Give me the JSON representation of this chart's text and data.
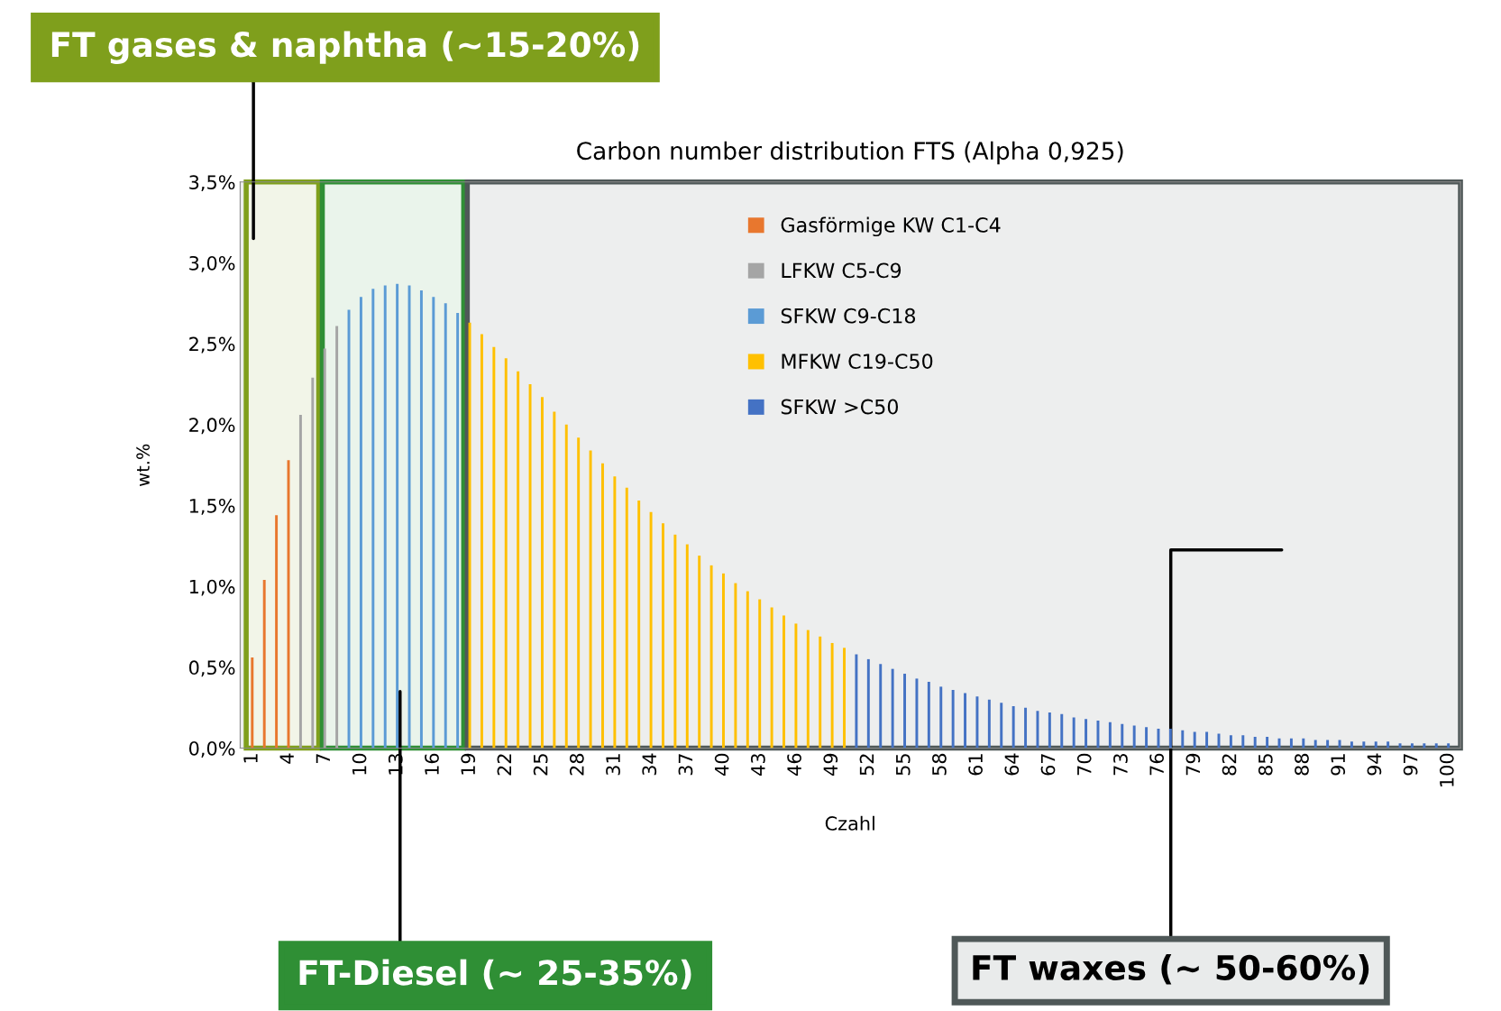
{
  "chart_data": {
    "type": "bar",
    "title": "Carbon number distribution FTS (Alpha 0,925)",
    "xlabel": "Czahl",
    "ylabel": "wt.%",
    "xlim": [
      0,
      101
    ],
    "xticks": [
      1,
      4,
      7,
      10,
      13,
      16,
      19,
      22,
      25,
      28,
      31,
      34,
      37,
      40,
      43,
      46,
      49,
      52,
      55,
      58,
      61,
      64,
      67,
      70,
      73,
      76,
      79,
      82,
      85,
      88,
      91,
      94,
      97,
      100
    ],
    "ylim": [
      0,
      3.5
    ],
    "yticks": [
      {
        "value": 0,
        "label": "0,0%"
      },
      {
        "value": 0.5,
        "label": "0,5%"
      },
      {
        "value": 1,
        "label": "1,0%"
      },
      {
        "value": 1.5,
        "label": "1,5%"
      },
      {
        "value": 2,
        "label": "2,0%"
      },
      {
        "value": 2.5,
        "label": "2,5%"
      },
      {
        "value": 3,
        "label": "3,0%"
      },
      {
        "value": 3.5,
        "label": "3,5%"
      }
    ],
    "grid": false,
    "legend": "top",
    "series": [
      {
        "name": "Gasförmige KW C1-C4",
        "color": "#e8772e",
        "x": [
          1,
          2,
          3,
          4
        ],
        "values": [
          0.56,
          1.04,
          1.44,
          1.78
        ]
      },
      {
        "name": "LFKW C5-C9",
        "color": "#a5a5a5",
        "x": [
          5,
          6,
          7,
          8
        ],
        "values": [
          2.06,
          2.29,
          2.47,
          2.61
        ]
      },
      {
        "name": "SFKW C9-C18",
        "color": "#5b9bd5",
        "x": [
          9,
          10,
          11,
          12,
          13,
          14,
          15,
          16,
          17,
          18
        ],
        "values": [
          2.71,
          2.79,
          2.84,
          2.86,
          2.87,
          2.86,
          2.83,
          2.79,
          2.75,
          2.69
        ]
      },
      {
        "name": "MFKW C19-C50",
        "color": "#ffc000",
        "x": [
          19,
          20,
          21,
          22,
          23,
          24,
          25,
          26,
          27,
          28,
          29,
          30,
          31,
          32,
          33,
          34,
          35,
          36,
          37,
          38,
          39,
          40,
          41,
          42,
          43,
          44,
          45,
          46,
          47,
          48,
          49,
          50
        ],
        "values": [
          2.63,
          2.56,
          2.48,
          2.41,
          2.33,
          2.25,
          2.17,
          2.08,
          2.0,
          1.92,
          1.84,
          1.76,
          1.68,
          1.61,
          1.53,
          1.46,
          1.39,
          1.32,
          1.26,
          1.19,
          1.13,
          1.08,
          1.02,
          0.97,
          0.92,
          0.87,
          0.82,
          0.77,
          0.73,
          0.69,
          0.65,
          0.62
        ]
      },
      {
        "name": "SFKW >C50",
        "color": "#4472c4",
        "x": [
          51,
          52,
          53,
          54,
          55,
          56,
          57,
          58,
          59,
          60,
          61,
          62,
          63,
          64,
          65,
          66,
          67,
          68,
          69,
          70,
          71,
          72,
          73,
          74,
          75,
          76,
          77,
          78,
          79,
          80,
          81,
          82,
          83,
          84,
          85,
          86,
          87,
          88,
          89,
          90,
          91,
          92,
          93,
          94,
          95,
          96,
          97,
          98,
          99,
          100
        ],
        "values": [
          0.58,
          0.55,
          0.52,
          0.49,
          0.46,
          0.43,
          0.41,
          0.38,
          0.36,
          0.34,
          0.32,
          0.3,
          0.28,
          0.26,
          0.25,
          0.23,
          0.22,
          0.21,
          0.19,
          0.18,
          0.17,
          0.16,
          0.15,
          0.14,
          0.13,
          0.12,
          0.12,
          0.11,
          0.1,
          0.1,
          0.09,
          0.08,
          0.08,
          0.07,
          0.07,
          0.06,
          0.06,
          0.06,
          0.05,
          0.05,
          0.05,
          0.04,
          0.04,
          0.04,
          0.04,
          0.03,
          0.03,
          0.03,
          0.03,
          0.03
        ]
      }
    ],
    "bands": [
      {
        "axis": "x",
        "from": 0.5,
        "to": 6.5,
        "label": "FT gases & naphtha (~15-20%)",
        "color": "#7f9f1c"
      },
      {
        "axis": "x",
        "from": 6.8,
        "to": 18.5,
        "label": "FT-Diesel (~ 25-35%)",
        "color": "#2f8f35"
      },
      {
        "axis": "x",
        "from": 18.8,
        "to": 101,
        "label": "FT waxes (~ 50-60%)",
        "color": "#4f5858"
      }
    ]
  }
}
